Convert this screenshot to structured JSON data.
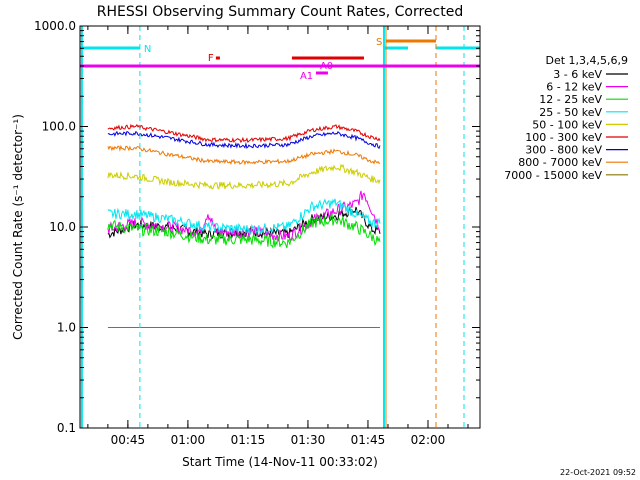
{
  "chart_data": {
    "type": "line",
    "title": "RHESSI Observing Summary Count Rates, Corrected",
    "xlabel": "Start Time (14-Nov-11 00:33:02)",
    "ylabel": "Corrected Count Rate (s⁻¹ detector⁻¹)",
    "yscale": "log",
    "ylim": [
      0.1,
      1000
    ],
    "xlim": [
      "00:33:02",
      "02:13:00"
    ],
    "x_ticks": [
      "00:45",
      "01:00",
      "01:15",
      "01:30",
      "01:45",
      "02:00"
    ],
    "y_ticks": [
      "0.1",
      "1.0",
      "10.0",
      "100.0",
      "1000.0"
    ],
    "legend_title": "Det 1,3,4,5,6,9",
    "legend_position": "right",
    "timestamp": "22-Oct-2021 09:52",
    "flag_labels": {
      "night": "N",
      "flare": "F",
      "saa": "S",
      "atten0": "A0",
      "atten1": "A1"
    },
    "colors": {
      "night": "#00e5ee",
      "flare": "#e00000",
      "saa": "#ee7700",
      "atten": "#ee00ee"
    },
    "series": [
      {
        "name": "3 - 6 keV",
        "color": "#000000",
        "x": [
          "00:40",
          "00:47",
          "00:55",
          "01:05",
          "01:15",
          "01:25",
          "01:31",
          "01:37",
          "01:42",
          "01:46",
          "01:48"
        ],
        "values": [
          8.5,
          10.5,
          10.0,
          8.5,
          9.0,
          8.5,
          12.0,
          13.0,
          15.0,
          9.5,
          9.0
        ]
      },
      {
        "name": "6 - 12 keV",
        "color": "#ee00ee",
        "x": [
          "00:40",
          "00:47",
          "00:55",
          "01:03",
          "01:05",
          "01:07",
          "01:15",
          "01:25",
          "01:31",
          "01:37",
          "01:42",
          "01:44",
          "01:47",
          "01:48"
        ],
        "values": [
          9.5,
          11.0,
          10.0,
          9.0,
          14.0,
          9.0,
          9.0,
          8.0,
          11.5,
          14.5,
          17.0,
          22.0,
          12.0,
          10.0
        ]
      },
      {
        "name": "12 - 25 keV",
        "color": "#00dd00",
        "x": [
          "00:40",
          "00:47",
          "00:55",
          "01:05",
          "01:15",
          "01:25",
          "01:31",
          "01:37",
          "01:42",
          "01:46",
          "01:48"
        ],
        "values": [
          10.5,
          9.5,
          9.0,
          7.5,
          7.5,
          7.0,
          11.0,
          12.0,
          10.0,
          8.0,
          7.0
        ]
      },
      {
        "name": "25 - 50 keV",
        "color": "#00e5ee",
        "x": [
          "00:40",
          "00:47",
          "00:55",
          "01:05",
          "01:15",
          "01:25",
          "01:31",
          "01:37",
          "01:42",
          "01:46",
          "01:48"
        ],
        "values": [
          13.5,
          13.5,
          12.0,
          10.0,
          9.5,
          10.0,
          16.0,
          17.5,
          13.5,
          11.0,
          11.0
        ]
      },
      {
        "name": "50 - 100 keV",
        "color": "#cccc00",
        "x": [
          "00:40",
          "00:47",
          "00:55",
          "01:05",
          "01:15",
          "01:25",
          "01:31",
          "01:37",
          "01:42",
          "01:46",
          "01:48"
        ],
        "values": [
          33,
          32,
          28,
          26,
          26,
          27,
          35,
          40,
          35,
          30,
          29
        ]
      },
      {
        "name": "100 - 300 keV",
        "color": "#e00000",
        "x": [
          "00:40",
          "00:47",
          "00:55",
          "01:05",
          "01:15",
          "01:25",
          "01:31",
          "01:37",
          "01:42",
          "01:46",
          "01:48"
        ],
        "values": [
          96,
          100,
          88,
          74,
          73,
          76,
          92,
          100,
          90,
          78,
          75
        ]
      },
      {
        "name": "300 - 800 keV",
        "color": "#0000dd",
        "x": [
          "00:40",
          "00:47",
          "00:55",
          "01:05",
          "01:15",
          "01:25",
          "01:31",
          "01:37",
          "01:42",
          "01:46",
          "01:48"
        ],
        "values": [
          84,
          86,
          77,
          66,
          64,
          66,
          80,
          86,
          77,
          67,
          63
        ]
      },
      {
        "name": "800 - 7000 keV",
        "color": "#ee7700",
        "x": [
          "00:40",
          "00:47",
          "00:55",
          "01:05",
          "01:15",
          "01:25",
          "01:31",
          "01:37",
          "01:42",
          "01:46",
          "01:48"
        ],
        "values": [
          61,
          61,
          53,
          45,
          44,
          45,
          53,
          57,
          52,
          45,
          43
        ]
      },
      {
        "name": "7000 - 15000 keV",
        "color": "#887700",
        "x": [
          "00:40",
          "00:47",
          "00:55",
          "01:05",
          "01:15",
          "01:25",
          "01:31",
          "01:37",
          "01:42",
          "01:46",
          "01:48"
        ],
        "values": [
          1.0,
          1.0,
          1.0,
          1.0,
          1.0,
          1.0,
          1.0,
          1.0,
          1.0,
          1.0,
          1.0
        ]
      }
    ]
  }
}
